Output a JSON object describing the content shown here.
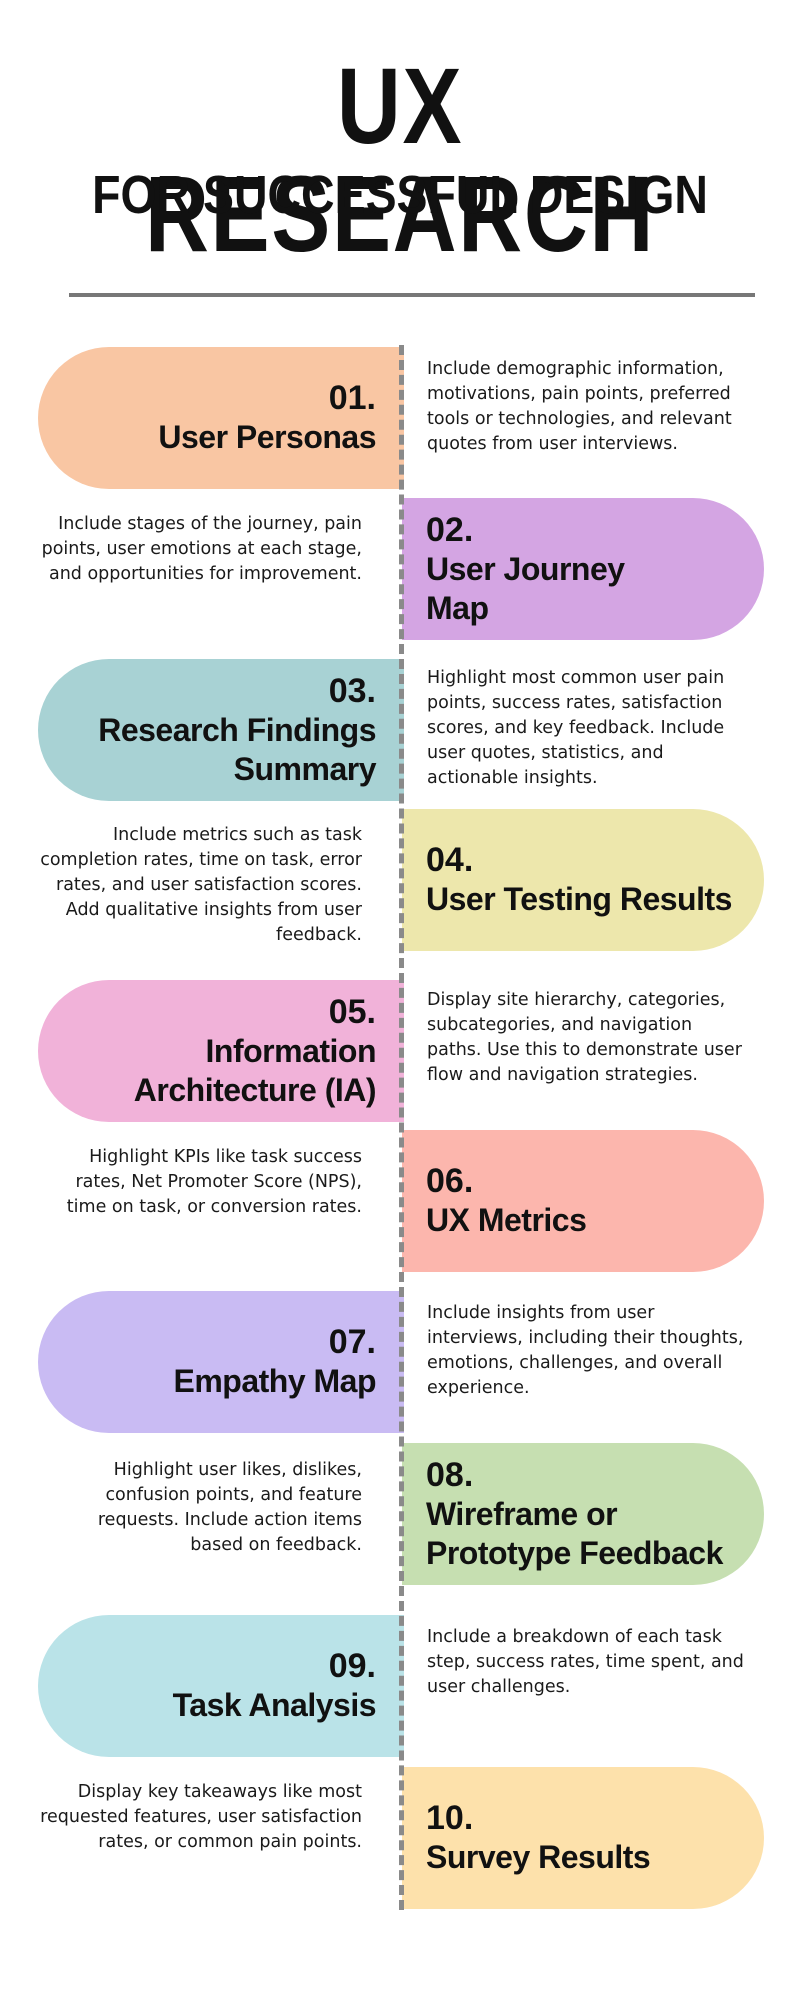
{
  "header": {
    "title": "UX RESEARCH",
    "subtitle": "FOR SUCCESSFUL DESIGN"
  },
  "colors": {
    "item_01": "#f9c6a3",
    "item_02": "#d4a5e3",
    "item_03": "#a8d2d4",
    "item_04": "#ede7ac",
    "item_05": "#f1b2d9",
    "item_06": "#fcb6ad",
    "item_07": "#c9bbf3",
    "item_08": "#c6dfb1",
    "item_09": "#bae3e8",
    "item_10": "#fde1ab"
  },
  "items": [
    {
      "number": "01.",
      "name_lines": [
        "User Personas"
      ],
      "description": "Include demographic information, motivations, pain points, preferred tools or technologies, and relevant quotes from user interviews."
    },
    {
      "number": "02.",
      "name_lines": [
        "User Journey",
        "Map"
      ],
      "description": "Include stages of the journey, pain points, user emotions at each stage, and opportunities for improvement."
    },
    {
      "number": "03.",
      "name_lines": [
        "Research Findings",
        "Summary"
      ],
      "description": "Highlight most common user pain points, success rates, satisfaction scores, and key feedback. Include user quotes, statistics, and actionable insights."
    },
    {
      "number": "04.",
      "name_lines": [
        "User Testing Results"
      ],
      "description": "Include metrics such as task completion rates, time on task, error rates, and user satisfaction scores. Add qualitative insights from user feedback."
    },
    {
      "number": "05.",
      "name_lines": [
        "Information",
        "Architecture (IA)"
      ],
      "description": "Display site hierarchy, categories, subcategories, and navigation paths. Use this to demonstrate user flow and navigation strategies."
    },
    {
      "number": "06.",
      "name_lines": [
        "UX Metrics"
      ],
      "description": "Highlight KPIs like task success rates, Net Promoter Score (NPS), time on task, or conversion rates."
    },
    {
      "number": "07.",
      "name_lines": [
        "Empathy Map"
      ],
      "description": "Include insights from user interviews, including their thoughts, emotions, challenges, and overall experience."
    },
    {
      "number": "08.",
      "name_lines": [
        "Wireframe or",
        "Prototype Feedback"
      ],
      "description": "Highlight user likes, dislikes, confusion points, and feature requests. Include action items based on feedback."
    },
    {
      "number": "09.",
      "name_lines": [
        "Task Analysis"
      ],
      "description": "Include a breakdown of each task step, success rates, time spent, and user challenges."
    },
    {
      "number": "10.",
      "name_lines": [
        "Survey Results"
      ],
      "description": "Display key takeaways like most requested features, user satisfaction rates, or common pain points."
    }
  ]
}
